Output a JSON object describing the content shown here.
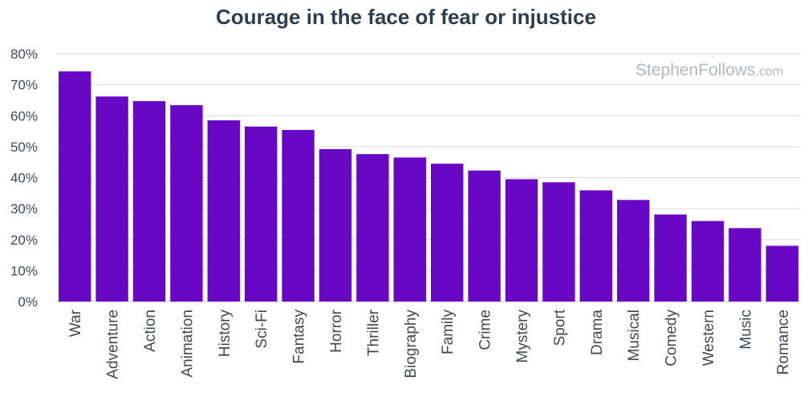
{
  "chart_data": {
    "type": "bar",
    "title": "Courage in the face of fear or injustice",
    "watermark": {
      "main": "StephenFollows",
      "suffix": ".com"
    },
    "xlabel": "",
    "ylabel": "",
    "ylim": [
      0,
      80
    ],
    "y_ticks": [
      0,
      10,
      20,
      30,
      40,
      50,
      60,
      70,
      80
    ],
    "y_tick_format": "%",
    "grid": true,
    "legend": "none",
    "bar_color": "#6808c4",
    "grid_color": "#dcdcdc",
    "categories": [
      "War",
      "Adventure",
      "Action",
      "Animation",
      "History",
      "Sci-Fi",
      "Fantasy",
      "Horror",
      "Thriller",
      "Biography",
      "Family",
      "Crime",
      "Mystery",
      "Sport",
      "Drama",
      "Musical",
      "Comedy",
      "Western",
      "Music",
      "Romance"
    ],
    "values": [
      74.3,
      66.2,
      64.7,
      63.4,
      58.5,
      56.5,
      55.4,
      49.2,
      47.6,
      46.5,
      44.5,
      42.3,
      39.5,
      38.5,
      35.9,
      32.8,
      28.1,
      26.0,
      23.7,
      18.0
    ]
  }
}
